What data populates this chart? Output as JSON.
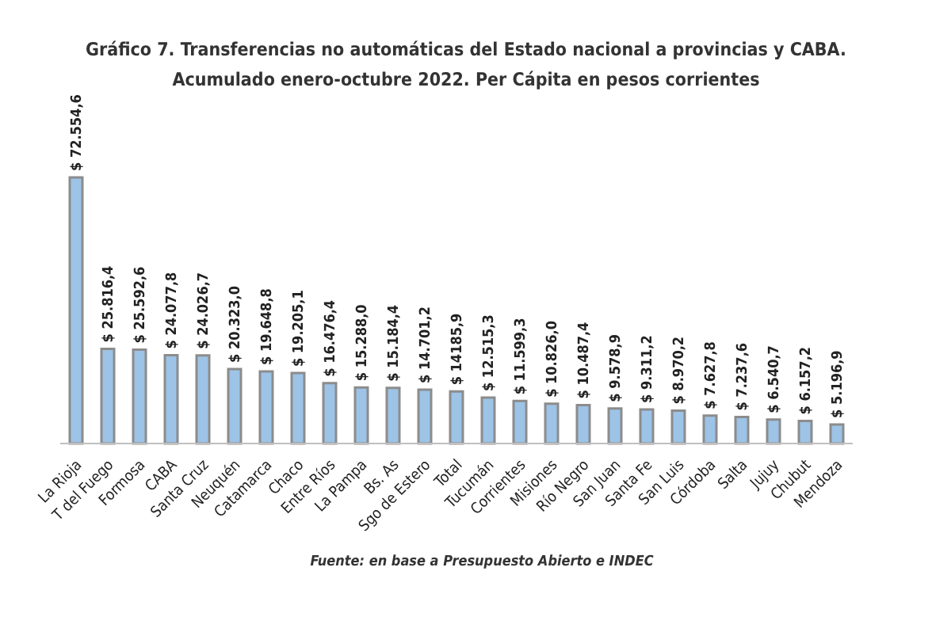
{
  "chart_data": {
    "type": "bar",
    "title": "Gráfico 7. Transferencias no automáticas del Estado nacional a provincias y CABA. Acumulado enero-octubre 2022. Per Cápita en pesos corrientes",
    "categories": [
      "La Rioja",
      "T del Fuego",
      "Formosa",
      "CABA",
      "Santa  Cruz",
      "Neuquén",
      "Catamarca",
      "Chaco",
      "Entre Ríos",
      "La Pampa",
      "Bs. As",
      "Sgo de Estero",
      "Total",
      "Tucumán",
      "Corrientes",
      "Misiones",
      "Río Negro",
      "San Juan",
      "Santa Fe",
      "San Luis",
      "Córdoba",
      "Salta",
      "Jujuy",
      "Chubut",
      "Mendoza"
    ],
    "values": [
      72554.6,
      25816.4,
      25592.6,
      24077.8,
      24026.7,
      20323.0,
      19648.8,
      19205.1,
      16476.4,
      15288.0,
      15184.4,
      14701.2,
      14185.9,
      12515.3,
      11599.3,
      10826.0,
      10487.4,
      9578.9,
      9311.2,
      8970.2,
      7627.8,
      7237.6,
      6540.7,
      6157.2,
      5196.9
    ],
    "value_labels": [
      "$ 72.554,6",
      "$ 25.816,4",
      "$ 25.592,6",
      "$ 24.077,8",
      "$ 24.026,7",
      "$ 20.323,0",
      "$ 19.648,8",
      "$ 19.205,1",
      "$ 16.476,4",
      "$ 15.288,0",
      "$ 15.184,4",
      "$ 14.701,2",
      "$ 14185,9",
      "$ 12.515,3",
      "$ 11.599,3",
      "$ 10.826,0",
      "$ 10.487,4",
      "$ 9.578,9",
      "$ 9.311,2",
      "$ 8.970,2",
      "$ 7.627,8",
      "$ 7.237,6",
      "$ 6.540,7",
      "$ 6.157,2",
      "$ 5.196,9"
    ],
    "color": "#9dc3e6",
    "annotations": [
      "Fuente: en base a Presupuesto Abierto e INDEC"
    ],
    "grid": false
  }
}
